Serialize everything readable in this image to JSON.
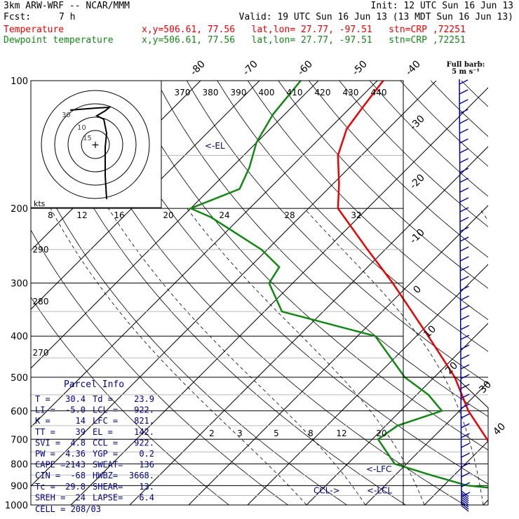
{
  "header": {
    "model": "3km ARW-WRF -- NCAR/MMM",
    "init": "Init: 12 UTC Sun 16 Jun 13",
    "fcst_label": "Fcst:",
    "fcst_value": "7 h",
    "valid": "Valid: 19 UTC Sun 16 Jun 13 (13 MDT Sun 16 Jun 13)",
    "temp_label": "Temperature",
    "dew_label": "Dewpoint temperature",
    "location": "x,y=506.61, 77.56   lat,lon= 27.77, -97.51   stn=CRP ,72251"
  },
  "colors": {
    "temperature": "#ee0000",
    "dewpoint": "#118811",
    "parcel": "#000088",
    "wind": "#000099"
  },
  "chart_data": {
    "type": "line",
    "xlabel": "",
    "ylabel": "",
    "y_axis": "pressure (hPa), log scale",
    "ylim": [
      1000,
      100
    ],
    "pressure_labels": [
      "100",
      "200",
      "300",
      "400",
      "500",
      "600",
      "700",
      "800",
      "900",
      "1000"
    ],
    "skew_temp_labels": [
      "-80",
      "-70",
      "-60",
      "-50",
      "-40",
      "-30",
      "-20",
      "-10",
      "0",
      "10",
      "20",
      "30",
      "40"
    ],
    "theta_labels": [
      "370",
      "380",
      "390",
      "400",
      "410",
      "420",
      "430",
      "440"
    ],
    "theta_low_labels": [
      "290",
      "280",
      "270"
    ],
    "mixing_ratio_labels": [
      "2",
      "3",
      "5",
      "8",
      "12",
      "20"
    ],
    "hodograph": {
      "units": "kts",
      "ring_labels": [
        "8",
        "12",
        "16",
        "20",
        "24",
        "28",
        "32"
      ],
      "scale_labels": [
        "30",
        "10",
        "15"
      ]
    },
    "series": [
      {
        "name": "Temperature",
        "points": [
          [
            1000,
            30.4
          ],
          [
            975,
            26
          ],
          [
            950,
            24.5
          ],
          [
            925,
            23
          ],
          [
            900,
            22.5
          ],
          [
            850,
            20
          ],
          [
            800,
            16
          ],
          [
            700,
            9.5
          ],
          [
            600,
            1.5
          ],
          [
            500,
            -6.5
          ],
          [
            400,
            -18
          ],
          [
            300,
            -33
          ],
          [
            250,
            -43
          ],
          [
            200,
            -55
          ],
          [
            175,
            -59
          ],
          [
            150,
            -64
          ],
          [
            130,
            -67
          ],
          [
            115,
            -68
          ],
          [
            100,
            -69
          ]
        ]
      },
      {
        "name": "Dewpoint temperature",
        "points": [
          [
            1000,
            23.9
          ],
          [
            975,
            23.7
          ],
          [
            950,
            23.5
          ],
          [
            925,
            23.4
          ],
          [
            900,
            14
          ],
          [
            850,
            6
          ],
          [
            800,
            -2
          ],
          [
            700,
            -9
          ],
          [
            650,
            -8
          ],
          [
            600,
            -3
          ],
          [
            550,
            -8
          ],
          [
            500,
            -15
          ],
          [
            400,
            -27
          ],
          [
            350,
            -47
          ],
          [
            300,
            -54
          ],
          [
            275,
            -55
          ],
          [
            250,
            -61
          ],
          [
            210,
            -75
          ],
          [
            200,
            -80
          ],
          [
            180,
            -75
          ],
          [
            160,
            -77
          ],
          [
            140,
            -80
          ],
          [
            120,
            -82
          ],
          [
            100,
            -83
          ]
        ]
      }
    ],
    "level_markers": [
      {
        "label": "EL",
        "pressure": 142
      },
      {
        "label": "LFC",
        "pressure": 821
      },
      {
        "label": "LCL",
        "pressure": 922
      },
      {
        "label": "CCL",
        "pressure": 922
      }
    ],
    "wind_scale": {
      "title": "Full barb:",
      "value": "5 m s⁻¹"
    }
  },
  "parcel_info": {
    "title": "Parcel Info",
    "rows": [
      [
        "T  =",
        "30.4",
        "Td =",
        "23.9"
      ],
      [
        "LI =",
        "-5.0",
        "LCL =",
        "922."
      ],
      [
        "K  =",
        "14",
        "LFC =",
        "821."
      ],
      [
        "TT =",
        "39",
        "EL =",
        "142."
      ],
      [
        "SVI =",
        "4.8",
        "CCL =",
        "922."
      ],
      [
        "PW =",
        "4.36",
        "YGP =",
        "0.2"
      ],
      [
        "CAPE =",
        "2143",
        "SWEAT=",
        "136"
      ],
      [
        "CIN =",
        "-68",
        "HWBZ=",
        "3668."
      ],
      [
        "Tc =",
        "29.8",
        "SHEAR=",
        "13."
      ],
      [
        "SREH =",
        "24",
        "LAPSE=",
        "6.4"
      ]
    ],
    "cell": "CELL = 208/03"
  }
}
